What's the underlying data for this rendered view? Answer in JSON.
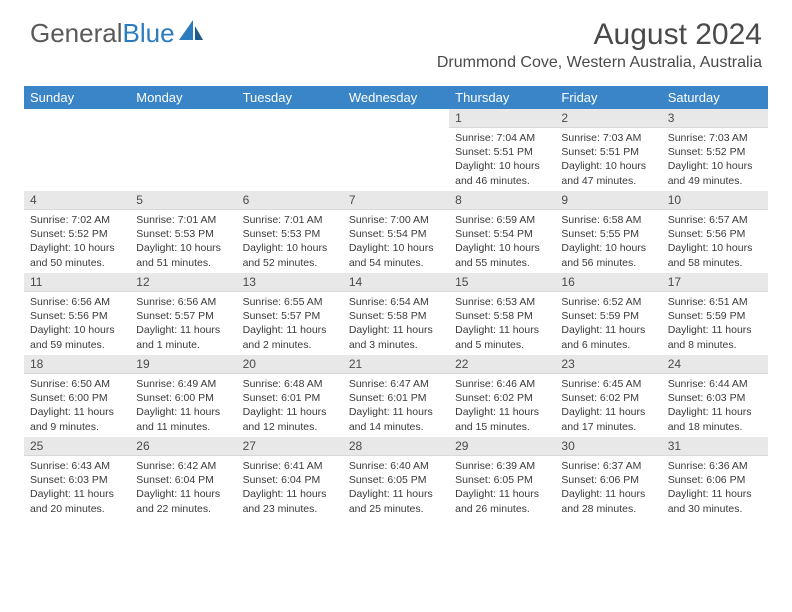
{
  "logo": {
    "text_gray": "General",
    "text_blue": "Blue"
  },
  "title": "August 2024",
  "location": "Drummond Cove, Western Australia, Australia",
  "colors": {
    "header_bg": "#3a85c7",
    "header_text": "#ffffff",
    "daynum_bg": "#e8e8e8",
    "text": "#3a3a3a",
    "title_text": "#4a4a4a",
    "logo_gray": "#5a5a5a",
    "logo_blue": "#2b7bbf"
  },
  "weekdays": [
    "Sunday",
    "Monday",
    "Tuesday",
    "Wednesday",
    "Thursday",
    "Friday",
    "Saturday"
  ],
  "layout": {
    "start_weekday_index": 4,
    "days_in_month": 31,
    "rows": 5,
    "cols": 7
  },
  "days": [
    {
      "n": 1,
      "sunrise": "7:04 AM",
      "sunset": "5:51 PM",
      "daylight": "10 hours and 46 minutes."
    },
    {
      "n": 2,
      "sunrise": "7:03 AM",
      "sunset": "5:51 PM",
      "daylight": "10 hours and 47 minutes."
    },
    {
      "n": 3,
      "sunrise": "7:03 AM",
      "sunset": "5:52 PM",
      "daylight": "10 hours and 49 minutes."
    },
    {
      "n": 4,
      "sunrise": "7:02 AM",
      "sunset": "5:52 PM",
      "daylight": "10 hours and 50 minutes."
    },
    {
      "n": 5,
      "sunrise": "7:01 AM",
      "sunset": "5:53 PM",
      "daylight": "10 hours and 51 minutes."
    },
    {
      "n": 6,
      "sunrise": "7:01 AM",
      "sunset": "5:53 PM",
      "daylight": "10 hours and 52 minutes."
    },
    {
      "n": 7,
      "sunrise": "7:00 AM",
      "sunset": "5:54 PM",
      "daylight": "10 hours and 54 minutes."
    },
    {
      "n": 8,
      "sunrise": "6:59 AM",
      "sunset": "5:54 PM",
      "daylight": "10 hours and 55 minutes."
    },
    {
      "n": 9,
      "sunrise": "6:58 AM",
      "sunset": "5:55 PM",
      "daylight": "10 hours and 56 minutes."
    },
    {
      "n": 10,
      "sunrise": "6:57 AM",
      "sunset": "5:56 PM",
      "daylight": "10 hours and 58 minutes."
    },
    {
      "n": 11,
      "sunrise": "6:56 AM",
      "sunset": "5:56 PM",
      "daylight": "10 hours and 59 minutes."
    },
    {
      "n": 12,
      "sunrise": "6:56 AM",
      "sunset": "5:57 PM",
      "daylight": "11 hours and 1 minute."
    },
    {
      "n": 13,
      "sunrise": "6:55 AM",
      "sunset": "5:57 PM",
      "daylight": "11 hours and 2 minutes."
    },
    {
      "n": 14,
      "sunrise": "6:54 AM",
      "sunset": "5:58 PM",
      "daylight": "11 hours and 3 minutes."
    },
    {
      "n": 15,
      "sunrise": "6:53 AM",
      "sunset": "5:58 PM",
      "daylight": "11 hours and 5 minutes."
    },
    {
      "n": 16,
      "sunrise": "6:52 AM",
      "sunset": "5:59 PM",
      "daylight": "11 hours and 6 minutes."
    },
    {
      "n": 17,
      "sunrise": "6:51 AM",
      "sunset": "5:59 PM",
      "daylight": "11 hours and 8 minutes."
    },
    {
      "n": 18,
      "sunrise": "6:50 AM",
      "sunset": "6:00 PM",
      "daylight": "11 hours and 9 minutes."
    },
    {
      "n": 19,
      "sunrise": "6:49 AM",
      "sunset": "6:00 PM",
      "daylight": "11 hours and 11 minutes."
    },
    {
      "n": 20,
      "sunrise": "6:48 AM",
      "sunset": "6:01 PM",
      "daylight": "11 hours and 12 minutes."
    },
    {
      "n": 21,
      "sunrise": "6:47 AM",
      "sunset": "6:01 PM",
      "daylight": "11 hours and 14 minutes."
    },
    {
      "n": 22,
      "sunrise": "6:46 AM",
      "sunset": "6:02 PM",
      "daylight": "11 hours and 15 minutes."
    },
    {
      "n": 23,
      "sunrise": "6:45 AM",
      "sunset": "6:02 PM",
      "daylight": "11 hours and 17 minutes."
    },
    {
      "n": 24,
      "sunrise": "6:44 AM",
      "sunset": "6:03 PM",
      "daylight": "11 hours and 18 minutes."
    },
    {
      "n": 25,
      "sunrise": "6:43 AM",
      "sunset": "6:03 PM",
      "daylight": "11 hours and 20 minutes."
    },
    {
      "n": 26,
      "sunrise": "6:42 AM",
      "sunset": "6:04 PM",
      "daylight": "11 hours and 22 minutes."
    },
    {
      "n": 27,
      "sunrise": "6:41 AM",
      "sunset": "6:04 PM",
      "daylight": "11 hours and 23 minutes."
    },
    {
      "n": 28,
      "sunrise": "6:40 AM",
      "sunset": "6:05 PM",
      "daylight": "11 hours and 25 minutes."
    },
    {
      "n": 29,
      "sunrise": "6:39 AM",
      "sunset": "6:05 PM",
      "daylight": "11 hours and 26 minutes."
    },
    {
      "n": 30,
      "sunrise": "6:37 AM",
      "sunset": "6:06 PM",
      "daylight": "11 hours and 28 minutes."
    },
    {
      "n": 31,
      "sunrise": "6:36 AM",
      "sunset": "6:06 PM",
      "daylight": "11 hours and 30 minutes."
    }
  ],
  "labels": {
    "sunrise_prefix": "Sunrise: ",
    "sunset_prefix": "Sunset: ",
    "daylight_prefix": "Daylight: "
  }
}
